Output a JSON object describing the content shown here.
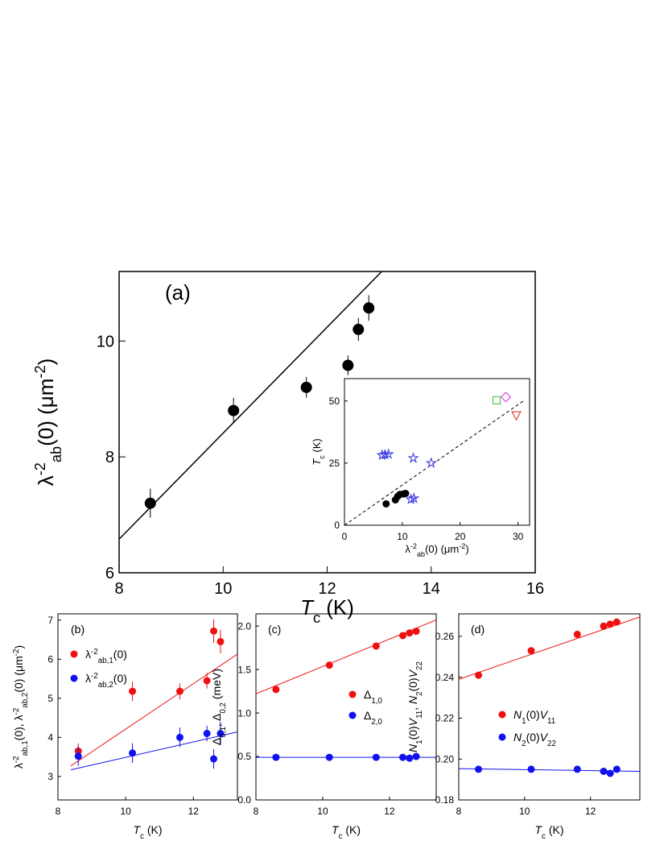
{
  "chart_data": [
    {
      "type": "scatter",
      "panel_label": "(a)",
      "xlabel": [
        {
          "t": "T",
          "st": "i"
        },
        {
          "t": "c",
          "st": "sub"
        },
        {
          "t": " (K)"
        }
      ],
      "ylabel": [
        {
          "t": "λ"
        },
        {
          "t": "-2",
          "st": "sup"
        },
        {
          "t": "ab",
          "st": "sub"
        },
        {
          "t": "(0) (μm"
        },
        {
          "t": "-2",
          "st": "sup"
        },
        {
          "t": ")"
        }
      ],
      "xlim": [
        8,
        16
      ],
      "xticks": [
        8,
        10,
        12,
        14,
        16
      ],
      "ylim": [
        6,
        11.2
      ],
      "yticks": [
        6,
        8,
        10
      ],
      "series": [
        {
          "color": "#000000",
          "marker": "circle",
          "filled": true,
          "x": [
            8.6,
            10.2,
            11.6,
            12.4,
            12.6,
            12.8
          ],
          "values": [
            7.2,
            8.8,
            9.2,
            9.58,
            10.2,
            10.57
          ],
          "errors": [
            0.25,
            0.22,
            0.18,
            0.17,
            0.2,
            0.22
          ]
        }
      ],
      "fits": [
        {
          "color": "#000000",
          "dashed": false,
          "x": [
            8,
            13.05
          ],
          "values": [
            6.58,
            11.2
          ]
        }
      ]
    },
    {
      "type": "scatter",
      "xlabel": [
        {
          "t": "λ"
        },
        {
          "t": "-2",
          "st": "sup"
        },
        {
          "t": "ab",
          "st": "sub"
        },
        {
          "t": "(0) (μm"
        },
        {
          "t": "-2",
          "st": "sup"
        },
        {
          "t": ")"
        }
      ],
      "ylabel": [
        {
          "t": "T",
          "st": "i"
        },
        {
          "t": "c",
          "st": "sub"
        },
        {
          "t": " (K)"
        }
      ],
      "xlim": [
        0,
        32
      ],
      "xticks": [
        0,
        10,
        20,
        30
      ],
      "ylim": [
        0,
        59
      ],
      "yticks": [
        0,
        25,
        50
      ],
      "series": [
        {
          "color": "#000000",
          "marker": "circle",
          "filled": true,
          "x": [
            7.2,
            8.8,
            9.2,
            9.58,
            10.2,
            10.57
          ],
          "values": [
            8.6,
            10.2,
            11.6,
            12.4,
            12.6,
            12.8
          ]
        },
        {
          "color": "#3030e0",
          "marker": "star",
          "filled": false,
          "x": [
            6.5,
            7.0,
            7.6,
            11.9,
            11.5,
            12.0,
            15.0
          ],
          "values": [
            28.2,
            28.4,
            28.6,
            27.0,
            10.4,
            10.8,
            25.0
          ]
        },
        {
          "color": "#30c030",
          "marker": "square",
          "filled": false,
          "x": [
            26.3
          ],
          "values": [
            50.3
          ]
        },
        {
          "color": "#e020e0",
          "marker": "diamond",
          "filled": false,
          "x": [
            27.9
          ],
          "values": [
            51.6
          ]
        },
        {
          "color": "#e02020",
          "marker": "triangle-down",
          "filled": false,
          "x": [
            29.7
          ],
          "values": [
            44.2
          ]
        }
      ],
      "fits": [
        {
          "color": "#000000",
          "dashed": true,
          "x": [
            0,
            31.1
          ],
          "values": [
            0,
            50.3
          ]
        }
      ]
    },
    {
      "type": "scatter",
      "panel_label": "(b)",
      "xlabel": [
        {
          "t": "T",
          "st": "i"
        },
        {
          "t": "c",
          "st": "sub"
        },
        {
          "t": " (K)"
        }
      ],
      "ylabel": [
        {
          "t": "λ"
        },
        {
          "t": "-2",
          "st": "sup"
        },
        {
          "t": "ab,1",
          "st": "sub"
        },
        {
          "t": "(0),  λ"
        },
        {
          "t": "-2",
          "st": "sup"
        },
        {
          "t": "ab,2",
          "st": "sub"
        },
        {
          "t": "(0) (μm"
        },
        {
          "t": "-2",
          "st": "sup"
        },
        {
          "t": ")"
        }
      ],
      "xlim": [
        8,
        13.3
      ],
      "xticks": [
        8,
        10,
        12
      ],
      "ylim": [
        2.4,
        7.16
      ],
      "yticks": [
        3,
        4,
        5,
        6,
        7
      ],
      "series": [
        {
          "name": [
            {
              "t": "λ"
            },
            {
              "t": "-2",
              "st": "sup"
            },
            {
              "t": "ab,1",
              "st": "sub"
            },
            {
              "t": "(0)"
            }
          ],
          "color": "#ee1111",
          "marker": "circle",
          "filled": true,
          "x": [
            8.6,
            10.2,
            11.6,
            12.4,
            12.6,
            12.8
          ],
          "values": [
            3.65,
            5.18,
            5.18,
            5.45,
            6.72,
            6.45
          ],
          "errors": [
            0.2,
            0.25,
            0.2,
            0.2,
            0.3,
            0.3
          ]
        },
        {
          "name": [
            {
              "t": "λ"
            },
            {
              "t": "-2",
              "st": "sup"
            },
            {
              "t": "ab,2",
              "st": "sub"
            },
            {
              "t": "(0)"
            }
          ],
          "color": "#1111ee",
          "marker": "circle",
          "filled": true,
          "x": [
            8.6,
            10.2,
            11.6,
            12.4,
            12.6,
            12.8
          ],
          "values": [
            3.52,
            3.6,
            4.0,
            4.1,
            3.45,
            4.1
          ],
          "errors": [
            0.25,
            0.25,
            0.25,
            0.2,
            0.25,
            0.3
          ]
        }
      ],
      "fits": [
        {
          "color": "#ee1111",
          "dashed": false,
          "x": [
            8.38,
            13.3
          ],
          "values": [
            3.27,
            6.13
          ]
        },
        {
          "color": "#1111ee",
          "dashed": false,
          "x": [
            8.38,
            13.3
          ],
          "values": [
            3.17,
            4.14
          ]
        }
      ]
    },
    {
      "type": "scatter",
      "panel_label": "(c)",
      "xlabel": [
        {
          "t": "T",
          "st": "i"
        },
        {
          "t": "c",
          "st": "sub"
        },
        {
          "t": " (K)"
        }
      ],
      "ylabel": [
        {
          "t": "Δ"
        },
        {
          "t": "0,1",
          "st": "sub"
        },
        {
          "t": ",  Δ"
        },
        {
          "t": "0,2",
          "st": "sub"
        },
        {
          "t": " (meV)"
        }
      ],
      "xlim": [
        8,
        13.4
      ],
      "xticks": [
        8,
        10,
        12
      ],
      "ylim": [
        0,
        2.14
      ],
      "yticks": [
        {
          "value": 0,
          "label": "0.0"
        },
        0.5,
        {
          "value": 1,
          "label": "1.0"
        },
        1.5,
        {
          "value": 2,
          "label": "2.0"
        }
      ],
      "series": [
        {
          "name": [
            {
              "t": "Δ"
            },
            {
              "t": "1,0",
              "st": "sub"
            }
          ],
          "color": "#ee1111",
          "marker": "circle",
          "filled": true,
          "x": [
            8.6,
            10.2,
            11.6,
            12.4,
            12.6,
            12.8
          ],
          "values": [
            1.27,
            1.55,
            1.77,
            1.89,
            1.92,
            1.94
          ]
        },
        {
          "name": [
            {
              "t": "Δ"
            },
            {
              "t": "2,0",
              "st": "sub"
            }
          ],
          "color": "#1111ee",
          "marker": "circle",
          "filled": true,
          "x": [
            8.6,
            10.2,
            11.6,
            12.4,
            12.6,
            12.8
          ],
          "values": [
            0.49,
            0.49,
            0.49,
            0.49,
            0.48,
            0.5
          ]
        }
      ],
      "fits": [
        {
          "color": "#ee1111",
          "dashed": false,
          "x": [
            8,
            13.4
          ],
          "values": [
            1.22,
            2.07
          ]
        },
        {
          "color": "#1111ee",
          "dashed": false,
          "x": [
            8,
            13.4
          ],
          "values": [
            0.49,
            0.49
          ]
        }
      ]
    },
    {
      "type": "scatter",
      "panel_label": "(d)",
      "xlabel": [
        {
          "t": "T",
          "st": "i"
        },
        {
          "t": "c",
          "st": "sub"
        },
        {
          "t": " (K)"
        }
      ],
      "ylabel": [
        {
          "t": "N",
          "st": "i"
        },
        {
          "t": "1",
          "st": "sub"
        },
        {
          "t": "(0)"
        },
        {
          "t": "V",
          "st": "i"
        },
        {
          "t": "11",
          "st": "sub"
        },
        {
          "t": ", "
        },
        {
          "t": "N",
          "st": "i"
        },
        {
          "t": "2",
          "st": "sub"
        },
        {
          "t": "(0)"
        },
        {
          "t": "V",
          "st": "i"
        },
        {
          "t": "22",
          "st": "sub"
        }
      ],
      "xlim": [
        8,
        13.5
      ],
      "xticks": [
        8,
        10,
        12
      ],
      "ylim": [
        0.18,
        0.271
      ],
      "yticks": [
        {
          "value": 0.18,
          "label": "0.18"
        },
        {
          "value": 0.2,
          "label": "0.20"
        },
        0.22,
        0.24,
        0.26
      ],
      "series": [
        {
          "name": [
            {
              "t": "N",
              "st": "i"
            },
            {
              "t": "1",
              "st": "sub"
            },
            {
              "t": "(0)"
            },
            {
              "t": "V",
              "st": "i"
            },
            {
              "t": "11",
              "st": "sub"
            }
          ],
          "color": "#ee1111",
          "marker": "circle",
          "filled": true,
          "x": [
            8.6,
            10.2,
            11.6,
            12.4,
            12.6,
            12.8
          ],
          "values": [
            0.241,
            0.253,
            0.261,
            0.265,
            0.266,
            0.267
          ]
        },
        {
          "name": [
            {
              "t": "N",
              "st": "i"
            },
            {
              "t": "2",
              "st": "sub"
            },
            {
              "t": "(0)"
            },
            {
              "t": "V",
              "st": "i"
            },
            {
              "t": "22",
              "st": "sub"
            }
          ],
          "color": "#1111ee",
          "marker": "circle",
          "filled": true,
          "x": [
            8.6,
            10.2,
            11.6,
            12.4,
            12.6,
            12.8
          ],
          "values": [
            0.195,
            0.195,
            0.195,
            0.194,
            0.193,
            0.195
          ]
        }
      ],
      "fits": [
        {
          "color": "#ee1111",
          "dashed": false,
          "x": [
            8,
            13.5
          ],
          "values": [
            0.239,
            0.2695
          ]
        },
        {
          "color": "#1111ee",
          "dashed": false,
          "x": [
            8,
            13.5
          ],
          "values": [
            0.1953,
            0.194
          ]
        }
      ]
    }
  ]
}
